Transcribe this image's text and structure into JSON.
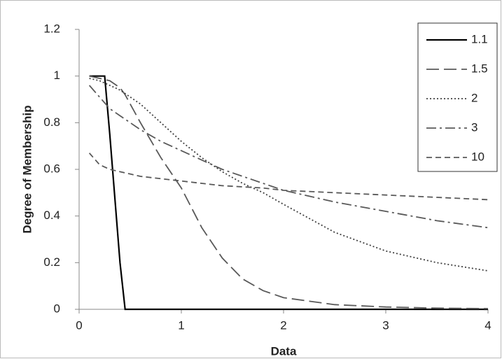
{
  "chart_data": {
    "type": "line",
    "x_label": "Data",
    "y_label": "Degree of Membership",
    "x": [
      0.1,
      0.2,
      0.25,
      0.3,
      0.4,
      0.45,
      0.5,
      0.6,
      0.8,
      1,
      1.2,
      1.4,
      1.6,
      1.8,
      2,
      2.5,
      3,
      3.5,
      4
    ],
    "series": [
      {
        "name": "1.1",
        "color": "#000000",
        "dash": "solid",
        "values": [
          1,
          1,
          1,
          0.75,
          0.2,
          0,
          0,
          0,
          0,
          0,
          0,
          0,
          0,
          0,
          0,
          0,
          0,
          0,
          0
        ]
      },
      {
        "name": "1.5",
        "color": "#595959",
        "dash": "long-dash",
        "values": [
          1,
          0.99,
          0.985,
          0.98,
          0.95,
          0.92,
          0.88,
          0.8,
          0.65,
          0.52,
          0.35,
          0.22,
          0.13,
          0.08,
          0.05,
          0.02,
          0.01,
          0.005,
          0.003
        ]
      },
      {
        "name": "2",
        "color": "#404040",
        "dash": "dotted",
        "values": [
          0.99,
          0.98,
          0.97,
          0.96,
          0.94,
          0.925,
          0.91,
          0.88,
          0.8,
          0.72,
          0.65,
          0.59,
          0.54,
          0.5,
          0.45,
          0.33,
          0.25,
          0.2,
          0.165
        ]
      },
      {
        "name": "3",
        "color": "#595959",
        "dash": "dash-dot",
        "values": [
          0.96,
          0.91,
          0.885,
          0.86,
          0.83,
          0.815,
          0.8,
          0.77,
          0.72,
          0.68,
          0.64,
          0.6,
          0.57,
          0.54,
          0.51,
          0.46,
          0.42,
          0.38,
          0.35
        ]
      },
      {
        "name": "10",
        "color": "#595959",
        "dash": "dash",
        "values": [
          0.67,
          0.62,
          0.61,
          0.6,
          0.59,
          0.585,
          0.58,
          0.57,
          0.56,
          0.55,
          0.54,
          0.53,
          0.525,
          0.52,
          0.51,
          0.5,
          0.49,
          0.48,
          0.47
        ]
      }
    ],
    "xlim": [
      0,
      4
    ],
    "xticks": [
      0,
      1,
      2,
      3,
      4
    ],
    "ylim": [
      0,
      1.2
    ],
    "yticks": [
      0,
      0.2,
      0.4,
      0.6,
      0.8,
      1,
      1.2
    ],
    "grid": false,
    "legend": "top-right"
  }
}
